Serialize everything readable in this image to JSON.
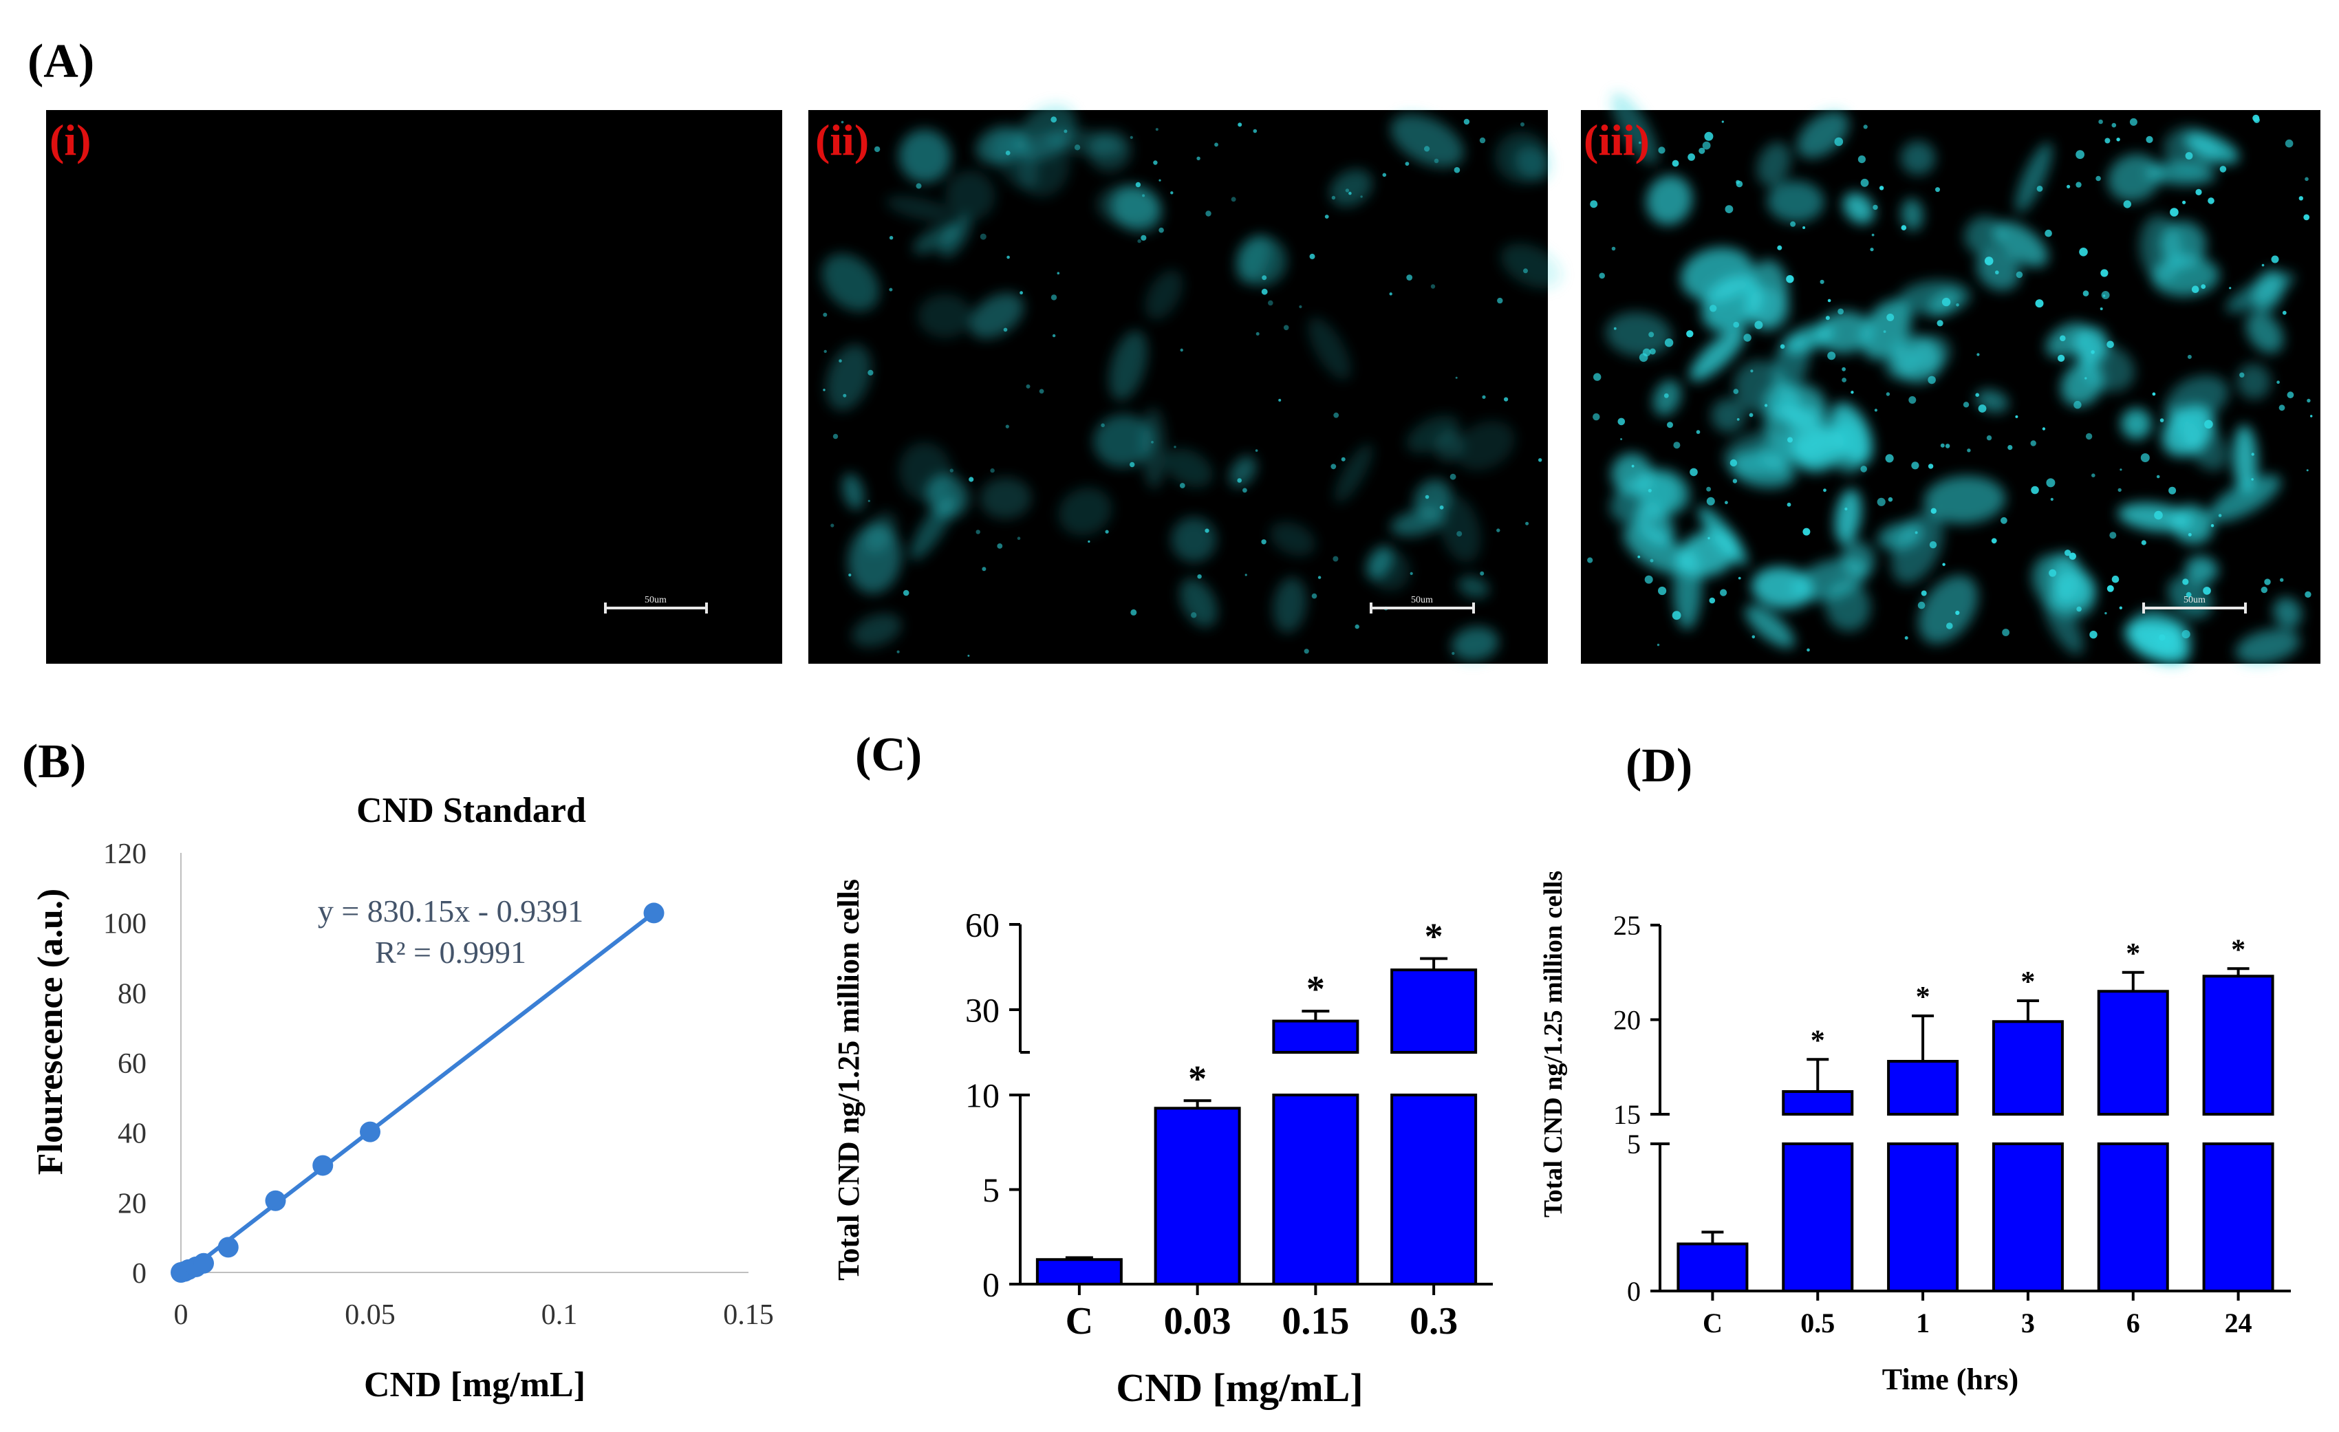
{
  "panels": {
    "A": {
      "label": "(A)",
      "images": [
        {
          "label": "(i)",
          "scale_bar": "50um",
          "brightness": "none"
        },
        {
          "label": "(ii)",
          "scale_bar": "50um",
          "brightness": "low"
        },
        {
          "label": "(iii)",
          "scale_bar": "50um",
          "brightness": "high"
        }
      ]
    },
    "B": {
      "label": "(B)"
    },
    "C": {
      "label": "(C)"
    },
    "D": {
      "label": "(D)"
    }
  },
  "colors": {
    "image_bg": "#000000",
    "cell_cyan": "#2fd8e0",
    "roman_label": "#e01010",
    "bar": "#0000ff",
    "line_b": "#3a7fd5",
    "equation_text": "#44546a",
    "axis_b": "#bfbfbf",
    "text": "#000000"
  },
  "chart_data": [
    {
      "panel": "B",
      "type": "scatter",
      "title": "CND Standard",
      "xlabel": "CND [mg/mL]",
      "ylabel": "Flourescence (a.u.)",
      "xlim": [
        0,
        0.15
      ],
      "ylim": [
        0,
        120
      ],
      "x_ticks": [
        "0",
        "0.05",
        "0.1",
        "0.15"
      ],
      "y_ticks": [
        "0",
        "20",
        "40",
        "60",
        "80",
        "100",
        "120"
      ],
      "grid": false,
      "trendline": true,
      "equation": "y = 830.15x - 0.9391",
      "r_squared": "R² = 0.9991",
      "points": [
        {
          "x": 0,
          "y": 0
        },
        {
          "x": 0.001,
          "y": 0.3
        },
        {
          "x": 0.002,
          "y": 0.8
        },
        {
          "x": 0.004,
          "y": 1.6
        },
        {
          "x": 0.006,
          "y": 2.6
        },
        {
          "x": 0.0125,
          "y": 7.2
        },
        {
          "x": 0.025,
          "y": 20.5
        },
        {
          "x": 0.0375,
          "y": 30.6
        },
        {
          "x": 0.05,
          "y": 40.2
        },
        {
          "x": 0.125,
          "y": 102.8
        }
      ]
    },
    {
      "panel": "C",
      "type": "bar",
      "xlabel": "CND [mg/mL]",
      "ylabel": "Total CND ng/1.25 million cells",
      "categories": [
        "C",
        "0.03",
        "0.15",
        "0.3"
      ],
      "values": [
        1.3,
        9.3,
        26,
        44
      ],
      "errors": [
        0.1,
        0.4,
        3.5,
        4
      ],
      "significance": [
        "",
        "*",
        "*",
        "*"
      ],
      "y_axis_break": [
        10,
        15
      ],
      "y_ticks": [
        "0",
        "5",
        "10",
        "30",
        "60"
      ]
    },
    {
      "panel": "D",
      "type": "bar",
      "xlabel": "Time (hrs)",
      "ylabel": "Total CND ng/1.25 million cells",
      "categories": [
        "C",
        "0.5",
        "1",
        "3",
        "6",
        "24"
      ],
      "values": [
        1.6,
        16.2,
        17.8,
        19.9,
        21.5,
        22.3
      ],
      "errors": [
        0.4,
        1.7,
        2.4,
        1.1,
        1,
        0.4
      ],
      "significance": [
        "",
        "*",
        "*",
        "*",
        "*",
        "*"
      ],
      "y_axis_break": [
        5,
        15
      ],
      "y_ticks": [
        "0",
        "5",
        "15",
        "20",
        "25"
      ]
    }
  ]
}
